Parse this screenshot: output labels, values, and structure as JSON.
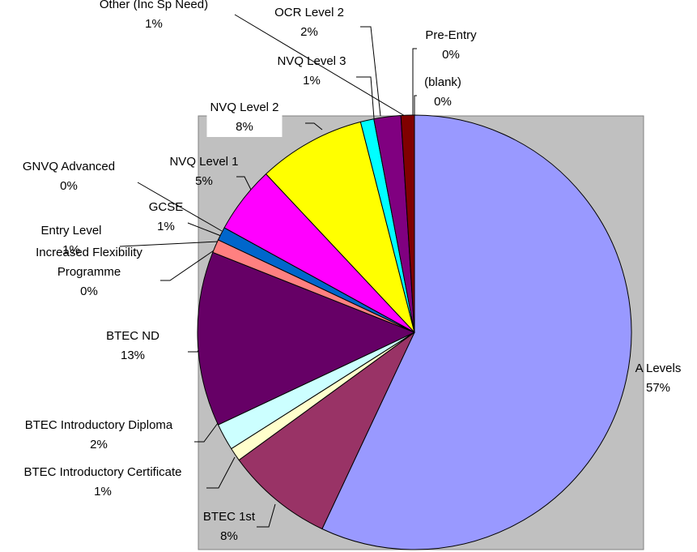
{
  "chart_data": {
    "type": "pie",
    "categories": [
      "A Levels",
      "BTEC 1st",
      "BTEC Introductory Certificate",
      "BTEC Introductory Diploma",
      "BTEC ND",
      "Entry Level",
      "GCSE",
      "GNVQ Advanced",
      "Increased Flexibility Programme",
      "NVQ Level 1",
      "NVQ Level 2",
      "NVQ Level 3",
      "OCR Level 2",
      "Other (Inc Sp Need)",
      "Pre-Entry",
      "(blank)"
    ],
    "values": [
      57,
      8,
      1,
      2,
      13,
      1,
      1,
      0,
      0,
      5,
      8,
      1,
      2,
      1,
      0,
      0
    ],
    "value_labels": [
      "57%",
      "8%",
      "1%",
      "2%",
      "13%",
      "1%",
      "1%",
      "0%",
      "0%",
      "5%",
      "8%",
      "1%",
      "2%",
      "1%",
      "0%",
      "0%"
    ],
    "colors": [
      "#9999FF",
      "#993366",
      "#FFFFCC",
      "#CCFFFF",
      "#660066",
      "#FF8080",
      "#0066CC",
      "#CCCCFF",
      "#000080",
      "#FF00FF",
      "#FFFF00",
      "#00FFFF",
      "#800080",
      "#800000",
      "#008080",
      "#0000FF"
    ]
  }
}
